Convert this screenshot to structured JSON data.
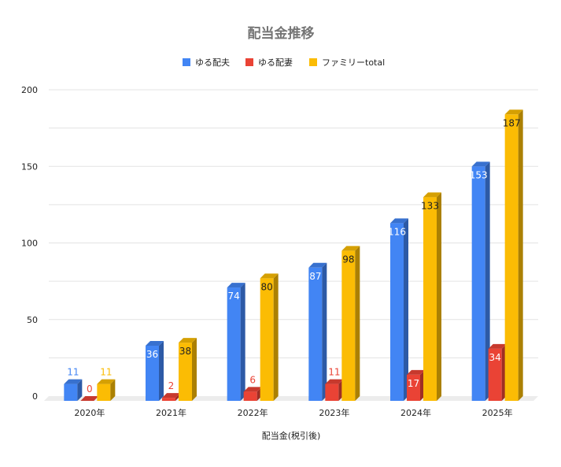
{
  "chart_data": {
    "type": "bar",
    "title": "配当金推移",
    "xlabel": "配当金(税引後)",
    "ylabel": "",
    "categories": [
      "2020年",
      "2021年",
      "2022年",
      "2023年",
      "2024年",
      "2025年"
    ],
    "series": [
      {
        "name": "ゆる配夫",
        "values": [
          11,
          36,
          74,
          87,
          116,
          153
        ],
        "color": "#4285f4"
      },
      {
        "name": "ゆる配妻",
        "values": [
          0,
          2,
          6,
          11,
          17,
          34
        ],
        "color": "#ea4335"
      },
      {
        "name": "ファミリーtotal",
        "values": [
          11,
          38,
          80,
          98,
          133,
          187
        ],
        "color": "#fbbc04"
      }
    ],
    "ylim": [
      0,
      200
    ],
    "yticks": [
      0,
      50,
      100,
      150,
      200
    ],
    "grid": true,
    "legend_position": "top",
    "style": "3d-column"
  }
}
